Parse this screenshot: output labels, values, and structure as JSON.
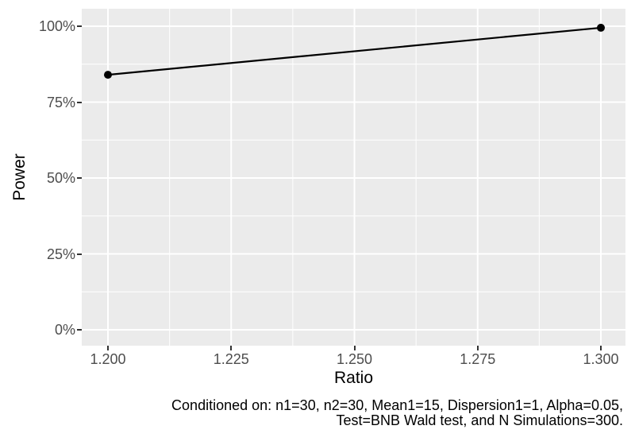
{
  "figure": {
    "background": "#FFFFFF"
  },
  "chart_data": {
    "type": "line",
    "title": "",
    "xlabel": "Ratio",
    "ylabel": "Power",
    "x": [
      1.2,
      1.3
    ],
    "series": [
      {
        "name": "Power",
        "values_percent": [
          84,
          99.5
        ]
      }
    ],
    "xlim": [
      1.2,
      1.3
    ],
    "ylim_percent": [
      0,
      100
    ],
    "x_ticks": [
      1.2,
      1.225,
      1.25,
      1.275,
      1.3
    ],
    "x_tick_labels": [
      "1.200",
      "1.225",
      "1.250",
      "1.275",
      "1.300"
    ],
    "y_ticks_percent": [
      0,
      25,
      50,
      75,
      100
    ],
    "y_tick_labels": [
      "0%",
      "25%",
      "50%",
      "75%",
      "100%"
    ],
    "grid": "major-and-minor",
    "legend": "none",
    "panel_bg": "#EBEBEB",
    "grid_color": "#FFFFFF",
    "axis_text_color": "#4D4D4D",
    "tick_mark_color": "#333333",
    "line_color": "#000000",
    "point_color": "#000000"
  },
  "caption": {
    "lines": [
      "Conditioned on: n1=30, n2=30, Mean1=15, Dispersion1=1, Alpha=0.05,",
      "Test=BNB Wald test, and N Simulations=300."
    ]
  }
}
